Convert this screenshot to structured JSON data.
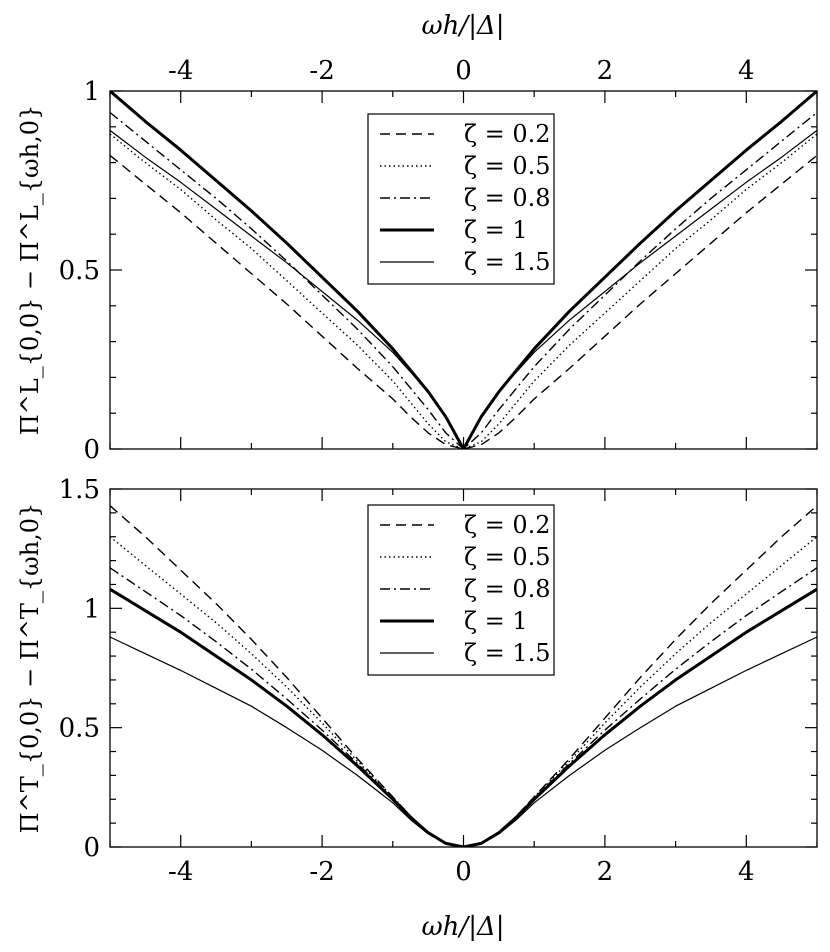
{
  "chart_data": [
    {
      "type": "line",
      "xlabel": "ωh/|Δ|",
      "ylabel": "Π^L_{0,0} − Π^L_{ωh,0}",
      "xlim": [
        -5,
        5
      ],
      "ylim": [
        0,
        1
      ],
      "xticks": [
        "-4",
        "-2",
        "0",
        "2",
        "4"
      ],
      "yticks": [
        "0",
        "0.5",
        "1"
      ],
      "x_axis_position": "top",
      "legend": {
        "position": "top-center"
      },
      "x": [
        -5,
        -4.5,
        -4,
        -3.5,
        -3,
        -2.5,
        -2,
        -1.5,
        -1,
        -0.75,
        -0.5,
        -0.25,
        0,
        0.25,
        0.5,
        0.75,
        1,
        1.5,
        2,
        2.5,
        3,
        3.5,
        4,
        4.5,
        5
      ],
      "series": [
        {
          "name": "ζ = 0.2",
          "style": "dashed",
          "values": [
            0.82,
            0.74,
            0.66,
            0.575,
            0.49,
            0.405,
            0.315,
            0.225,
            0.14,
            0.09,
            0.045,
            0.012,
            0,
            0.012,
            0.045,
            0.09,
            0.14,
            0.225,
            0.315,
            0.405,
            0.49,
            0.575,
            0.66,
            0.74,
            0.82
          ]
        },
        {
          "name": "ζ = 0.5",
          "style": "dotted",
          "values": [
            0.88,
            0.8,
            0.725,
            0.64,
            0.56,
            0.47,
            0.38,
            0.29,
            0.19,
            0.13,
            0.07,
            0.02,
            0,
            0.02,
            0.07,
            0.13,
            0.19,
            0.29,
            0.38,
            0.47,
            0.56,
            0.64,
            0.725,
            0.8,
            0.88
          ]
        },
        {
          "name": "ζ = 0.8",
          "style": "dashdot",
          "values": [
            0.94,
            0.86,
            0.78,
            0.7,
            0.615,
            0.525,
            0.43,
            0.335,
            0.23,
            0.17,
            0.11,
            0.045,
            0,
            0.045,
            0.11,
            0.17,
            0.23,
            0.335,
            0.43,
            0.525,
            0.615,
            0.7,
            0.78,
            0.86,
            0.94
          ]
        },
        {
          "name": "ζ = 1",
          "style": "thick",
          "values": [
            1.0,
            0.915,
            0.835,
            0.75,
            0.665,
            0.575,
            0.48,
            0.385,
            0.28,
            0.22,
            0.16,
            0.09,
            0,
            0.09,
            0.16,
            0.22,
            0.28,
            0.385,
            0.48,
            0.575,
            0.665,
            0.75,
            0.835,
            0.915,
            1.0
          ]
        },
        {
          "name": "ζ = 1.5",
          "style": "solid",
          "values": [
            0.89,
            0.815,
            0.745,
            0.67,
            0.595,
            0.52,
            0.44,
            0.36,
            0.27,
            0.215,
            0.16,
            0.09,
            0,
            0.09,
            0.16,
            0.215,
            0.27,
            0.36,
            0.44,
            0.52,
            0.595,
            0.67,
            0.745,
            0.815,
            0.89
          ]
        }
      ]
    },
    {
      "type": "line",
      "xlabel": "ωh/|Δ|",
      "ylabel": "Π^T_{0,0} − Π^T_{ωh,0}",
      "xlim": [
        -5,
        5
      ],
      "ylim": [
        0,
        1.5
      ],
      "xticks": [
        "-4",
        "-2",
        "0",
        "2",
        "4"
      ],
      "yticks": [
        "0",
        "0.5",
        "1",
        "1.5"
      ],
      "x_axis_position": "bottom",
      "legend": {
        "position": "top-center"
      },
      "x": [
        -5,
        -4.5,
        -4,
        -3.5,
        -3,
        -2.5,
        -2,
        -1.5,
        -1,
        -0.75,
        -0.5,
        -0.25,
        0,
        0.25,
        0.5,
        0.75,
        1,
        1.5,
        2,
        2.5,
        3,
        3.5,
        4,
        4.5,
        5
      ],
      "series": [
        {
          "name": "ζ = 0.2",
          "style": "dashed",
          "values": [
            1.43,
            1.3,
            1.16,
            1.02,
            0.87,
            0.71,
            0.54,
            0.37,
            0.21,
            0.13,
            0.06,
            0.015,
            0,
            0.015,
            0.06,
            0.13,
            0.21,
            0.37,
            0.54,
            0.71,
            0.87,
            1.02,
            1.16,
            1.3,
            1.43
          ]
        },
        {
          "name": "ζ = 0.5",
          "style": "dotted",
          "values": [
            1.3,
            1.18,
            1.06,
            0.94,
            0.81,
            0.67,
            0.52,
            0.36,
            0.21,
            0.13,
            0.06,
            0.015,
            0,
            0.015,
            0.06,
            0.13,
            0.21,
            0.36,
            0.52,
            0.67,
            0.81,
            0.94,
            1.06,
            1.18,
            1.3
          ]
        },
        {
          "name": "ζ = 0.8",
          "style": "dashdot",
          "values": [
            1.17,
            1.07,
            0.97,
            0.86,
            0.745,
            0.62,
            0.49,
            0.35,
            0.205,
            0.13,
            0.06,
            0.015,
            0,
            0.015,
            0.06,
            0.13,
            0.205,
            0.35,
            0.49,
            0.62,
            0.745,
            0.86,
            0.97,
            1.07,
            1.17
          ]
        },
        {
          "name": "ζ = 1",
          "style": "thick",
          "values": [
            1.08,
            0.99,
            0.9,
            0.8,
            0.7,
            0.59,
            0.47,
            0.34,
            0.2,
            0.125,
            0.06,
            0.015,
            0,
            0.015,
            0.06,
            0.125,
            0.2,
            0.34,
            0.47,
            0.59,
            0.7,
            0.8,
            0.9,
            0.99,
            1.08
          ]
        },
        {
          "name": "ζ = 1.5",
          "style": "solid",
          "values": [
            0.88,
            0.81,
            0.74,
            0.665,
            0.59,
            0.5,
            0.405,
            0.3,
            0.185,
            0.115,
            0.055,
            0.014,
            0,
            0.014,
            0.055,
            0.115,
            0.185,
            0.3,
            0.405,
            0.5,
            0.59,
            0.665,
            0.74,
            0.81,
            0.88
          ]
        }
      ]
    }
  ]
}
